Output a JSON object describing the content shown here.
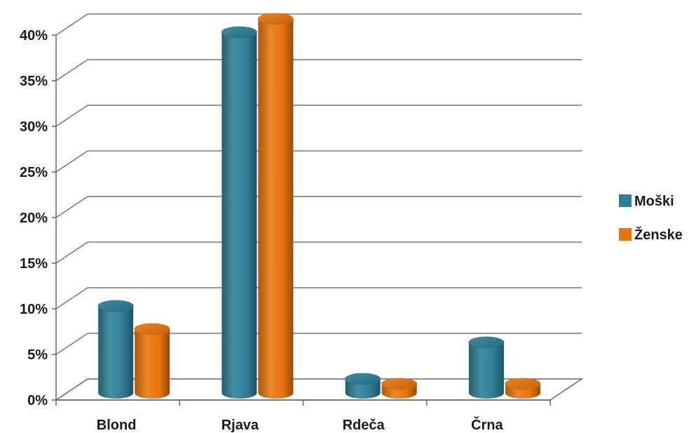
{
  "chart_data": {
    "type": "bar",
    "categories": [
      "Blond",
      "Rjava",
      "Rdeča",
      "Črna"
    ],
    "series": [
      {
        "name": "Moški",
        "color": "#2E7E96",
        "values": [
          0.09,
          0.39,
          0.01,
          0.05
        ]
      },
      {
        "name": "Ženske",
        "color": "#E8740C",
        "values": [
          0.06,
          0.4,
          0.0,
          0.0
        ]
      }
    ],
    "ylim": [
      0,
      0.4
    ],
    "yticks": [
      "0%",
      "5%",
      "10%",
      "15%",
      "20%",
      "25%",
      "30%",
      "35%",
      "40%"
    ],
    "ytick_values": [
      0,
      0.05,
      0.1,
      0.15,
      0.2,
      0.25,
      0.3,
      0.35,
      0.4
    ],
    "grid": true,
    "legend": "right",
    "style": "3d-cylinder"
  }
}
